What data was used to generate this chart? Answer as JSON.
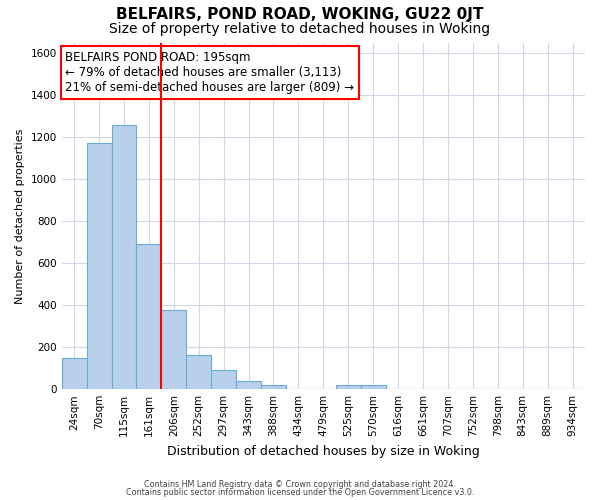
{
  "title": "BELFAIRS, POND ROAD, WOKING, GU22 0JT",
  "subtitle": "Size of property relative to detached houses in Woking",
  "xlabel": "Distribution of detached houses by size in Woking",
  "ylabel": "Number of detached properties",
  "categories": [
    "24sqm",
    "70sqm",
    "115sqm",
    "161sqm",
    "206sqm",
    "252sqm",
    "297sqm",
    "343sqm",
    "388sqm",
    "434sqm",
    "479sqm",
    "525sqm",
    "570sqm",
    "616sqm",
    "661sqm",
    "707sqm",
    "752sqm",
    "798sqm",
    "843sqm",
    "889sqm",
    "934sqm"
  ],
  "values": [
    150,
    1170,
    1255,
    690,
    375,
    165,
    90,
    38,
    22,
    0,
    0,
    20,
    18,
    0,
    0,
    0,
    0,
    0,
    0,
    0,
    0
  ],
  "bar_color": "#b8d0eb",
  "bar_edge_color": "#6aaad4",
  "red_line_x": 4.0,
  "annotation_title": "BELFAIRS POND ROAD: 195sqm",
  "annotation_line1": "← 79% of detached houses are smaller (3,113)",
  "annotation_line2": "21% of semi-detached houses are larger (809) →",
  "ylim": [
    0,
    1650
  ],
  "yticks": [
    0,
    200,
    400,
    600,
    800,
    1000,
    1200,
    1400,
    1600
  ],
  "footer1": "Contains HM Land Registry data © Crown copyright and database right 2024.",
  "footer2": "Contains public sector information licensed under the Open Government Licence v3.0.",
  "bg_color": "#ffffff",
  "grid_color": "#d0d8e8",
  "title_fontsize": 11,
  "subtitle_fontsize": 10,
  "axis_label_fontsize": 9,
  "tick_fontsize": 7.5,
  "annotation_fontsize": 8.5,
  "ylabel_fontsize": 8
}
